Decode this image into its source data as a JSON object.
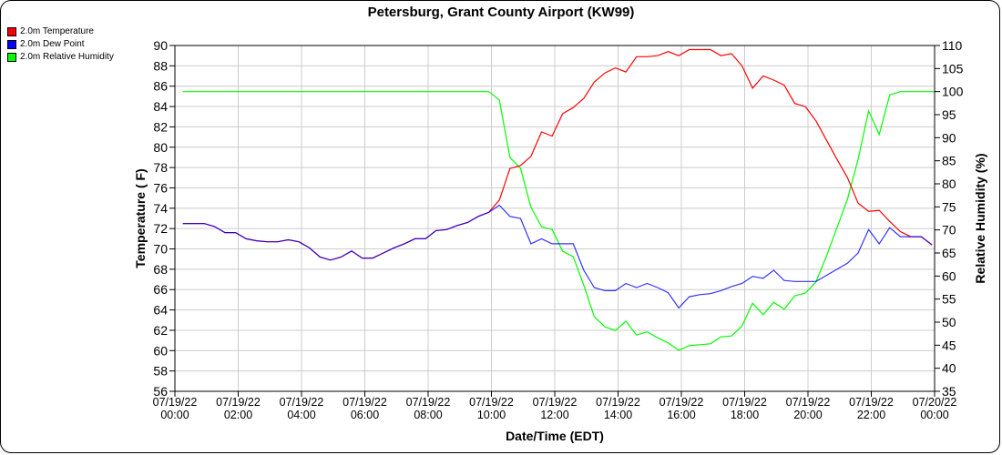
{
  "chart_data": {
    "type": "line",
    "title": "Petersburg, Grant County Airport (KW99)",
    "xlabel": "Date/Time (EDT)",
    "ylabel": "Temperature ( F)",
    "y2label": "Relative Humidity (%)",
    "xlim": [
      "07/19/22 00:00",
      "07/20/22 00:00"
    ],
    "ylim": [
      56,
      90
    ],
    "y2lim": [
      35,
      110
    ],
    "grid": true,
    "legend_position": "top-left",
    "x_ticks": [
      [
        "07/19/22",
        "00:00"
      ],
      [
        "07/19/22",
        "02:00"
      ],
      [
        "07/19/22",
        "04:00"
      ],
      [
        "07/19/22",
        "06:00"
      ],
      [
        "07/19/22",
        "08:00"
      ],
      [
        "07/19/22",
        "10:00"
      ],
      [
        "07/19/22",
        "12:00"
      ],
      [
        "07/19/22",
        "14:00"
      ],
      [
        "07/19/22",
        "16:00"
      ],
      [
        "07/19/22",
        "18:00"
      ],
      [
        "07/19/22",
        "20:00"
      ],
      [
        "07/19/22",
        "22:00"
      ],
      [
        "07/20/22",
        "00:00"
      ]
    ],
    "y_ticks": [
      56,
      58,
      60,
      62,
      64,
      66,
      68,
      70,
      72,
      74,
      76,
      78,
      80,
      82,
      84,
      86,
      88,
      90
    ],
    "y2_ticks": [
      35,
      40,
      45,
      50,
      55,
      60,
      65,
      70,
      75,
      80,
      85,
      90,
      95,
      100,
      105,
      110
    ],
    "time_start": "07/19/22 00:15",
    "time_step_minutes": 20,
    "series": [
      {
        "name": "2.0m Temperature",
        "axis": "left",
        "color": "#ff0000",
        "values": [
          72.5,
          72.5,
          72.5,
          72.2,
          71.6,
          71.6,
          71.0,
          70.8,
          70.7,
          70.7,
          70.9,
          70.7,
          70.1,
          69.2,
          68.9,
          69.2,
          69.8,
          69.1,
          69.1,
          69.6,
          70.1,
          70.5,
          71.0,
          71.0,
          71.8,
          71.9,
          72.3,
          72.6,
          73.2,
          73.6,
          74.8,
          77.9,
          78.2,
          79.1,
          81.5,
          81.1,
          83.3,
          83.9,
          84.8,
          86.4,
          87.3,
          87.8,
          87.4,
          88.9,
          88.9,
          89.0,
          89.4,
          89.0,
          89.6,
          89.6,
          89.6,
          89.0,
          89.2,
          88.0,
          85.8,
          87.0,
          86.6,
          86.1,
          84.3,
          84.0,
          82.6,
          80.7,
          78.8,
          77.0,
          74.5,
          73.7,
          73.8,
          72.7,
          71.7,
          71.2,
          71.2,
          70.4
        ]
      },
      {
        "name": "2.0m Dew Point",
        "axis": "left",
        "color": "#0000ff",
        "values": [
          72.5,
          72.5,
          72.5,
          72.2,
          71.6,
          71.6,
          71.0,
          70.8,
          70.7,
          70.7,
          70.9,
          70.7,
          70.1,
          69.2,
          68.9,
          69.2,
          69.8,
          69.1,
          69.1,
          69.6,
          70.1,
          70.5,
          71.0,
          71.0,
          71.8,
          71.9,
          72.3,
          72.6,
          73.2,
          73.6,
          74.3,
          73.2,
          73.0,
          70.5,
          71.0,
          70.5,
          70.5,
          70.5,
          67.9,
          66.2,
          65.9,
          65.9,
          66.6,
          66.2,
          66.6,
          66.2,
          65.7,
          64.2,
          65.3,
          65.5,
          65.6,
          65.9,
          66.3,
          66.6,
          67.3,
          67.1,
          67.9,
          66.9,
          66.8,
          66.8,
          66.8,
          67.4,
          68.0,
          68.6,
          69.6,
          71.9,
          70.5,
          72.1,
          71.2,
          71.2,
          71.2,
          70.4
        ]
      },
      {
        "name": "2.0m Relative Humidity",
        "axis": "right",
        "color": "#00ff00",
        "values": [
          100,
          100,
          100,
          100,
          100,
          100,
          100,
          100,
          100,
          100,
          100,
          100,
          100,
          100,
          100,
          100,
          100,
          100,
          100,
          100,
          100,
          100,
          100,
          100,
          100,
          100,
          100,
          100,
          100,
          100,
          98.2,
          85.7,
          83.4,
          74.9,
          70.7,
          70.1,
          65.4,
          64.2,
          58.0,
          51.2,
          49.0,
          48.2,
          50.2,
          47.2,
          47.9,
          46.6,
          45.5,
          43.9,
          44.9,
          45.1,
          45.3,
          46.8,
          47.0,
          49.2,
          54.1,
          51.6,
          54.3,
          52.8,
          55.7,
          56.3,
          58.7,
          64.3,
          70.5,
          76.7,
          85.3,
          95.8,
          90.7,
          99.3,
          100,
          100,
          100,
          100
        ]
      }
    ]
  }
}
